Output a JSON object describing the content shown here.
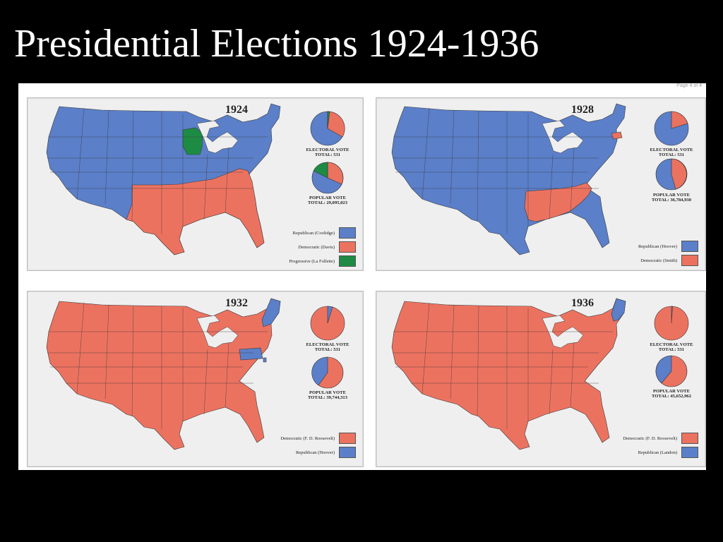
{
  "slide": {
    "title": "Presidential Elections 1924-1936"
  },
  "figure_note": "Page 4 of 4",
  "colors": {
    "republican": "#5b7fc9",
    "democratic": "#ec7260",
    "progressive": "#1e8b44",
    "background": "#000000",
    "panel": "#efefef"
  },
  "panels": [
    {
      "year": "1924",
      "electoral_caption": {
        "title": "ELECTORAL VOTE",
        "total": "TOTAL: 531"
      },
      "popular_caption": {
        "title": "POPULAR VOTE",
        "total": "TOTAL: 29,095,023"
      },
      "legend": [
        {
          "label": "Republican (Coolidge)",
          "color": "#5b7fc9",
          "swatch": "rep"
        },
        {
          "label": "Democratic (Davis)",
          "color": "#ec7260",
          "swatch": "dem"
        },
        {
          "label": "Progressive (La Follette)",
          "color": "#1e8b44",
          "swatch": "prog"
        }
      ]
    },
    {
      "year": "1928",
      "electoral_caption": {
        "title": "ELECTORAL VOTE",
        "total": "TOTAL: 531"
      },
      "popular_caption": {
        "title": "POPULAR VOTE",
        "total": "TOTAL: 36,784,930"
      },
      "legend": [
        {
          "label": "Republican (Hoover)",
          "color": "#5b7fc9",
          "swatch": "rep"
        },
        {
          "label": "Democratic (Smith)",
          "color": "#ec7260",
          "swatch": "dem"
        }
      ]
    },
    {
      "year": "1932",
      "electoral_caption": {
        "title": "ELECTORAL VOTE",
        "total": "TOTAL: 531"
      },
      "popular_caption": {
        "title": "POPULAR VOTE",
        "total": "TOTAL: 39,744,313"
      },
      "legend": [
        {
          "label": "Democratic (F. D. Roosevelt)",
          "color": "#ec7260",
          "swatch": "dem"
        },
        {
          "label": "Republican (Hoover)",
          "color": "#5b7fc9",
          "swatch": "rep"
        }
      ]
    },
    {
      "year": "1936",
      "electoral_caption": {
        "title": "ELECTORAL VOTE",
        "total": "TOTAL: 531"
      },
      "popular_caption": {
        "title": "POPULAR VOTE",
        "total": "TOTAL: 45,652,962"
      },
      "legend": [
        {
          "label": "Democratic (F. D. Roosevelt)",
          "color": "#ec7260",
          "swatch": "dem"
        },
        {
          "label": "Republican (Landon)",
          "color": "#5b7fc9",
          "swatch": "rep"
        }
      ]
    }
  ]
}
